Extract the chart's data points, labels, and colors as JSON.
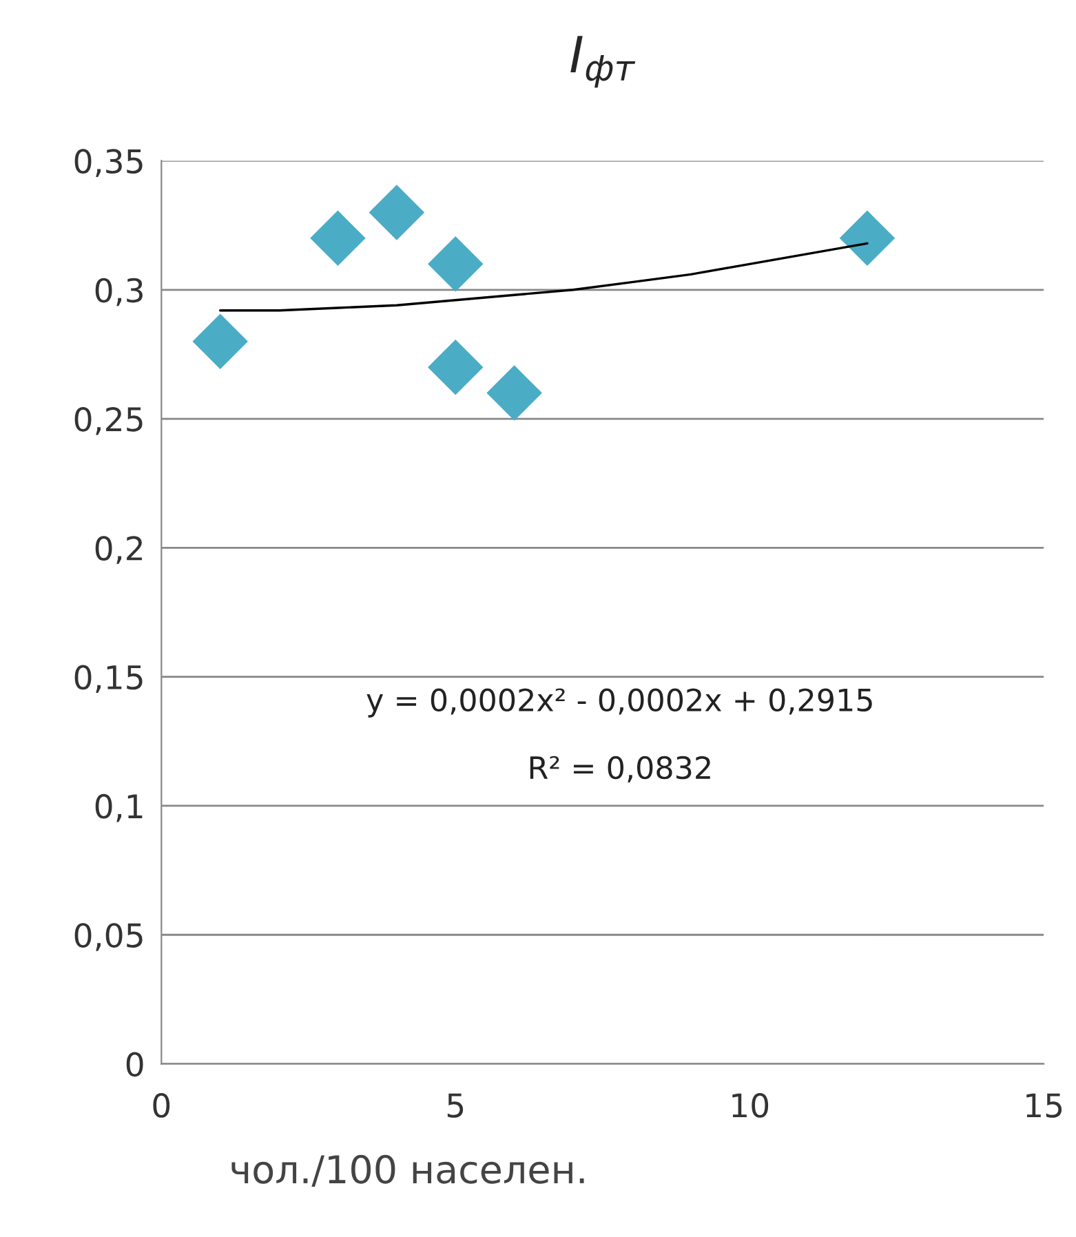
{
  "chart_data": {
    "type": "scatter",
    "title": "I$_{фт}$",
    "xlabel": "чол./100 населен.",
    "x": [
      1,
      3,
      4,
      5,
      5,
      6,
      12
    ],
    "series": [
      {
        "color": "#4bacc6",
        "marker": "diamond",
        "values": [
          0.28,
          0.32,
          0.33,
          0.31,
          0.27,
          0.26,
          0.32
        ]
      },
      {
        "type": "line",
        "color": "#000000",
        "line_style": "solid",
        "marker": "none",
        "x": [
          1,
          2,
          3,
          4,
          5,
          6,
          7,
          8,
          9,
          10,
          11,
          12
        ],
        "values": [
          0.292,
          0.292,
          0.293,
          0.294,
          0.296,
          0.298,
          0.3,
          0.303,
          0.306,
          0.31,
          0.314,
          0.318
        ]
      }
    ],
    "xlim": [
      0,
      15
    ],
    "xticks": [
      0,
      5,
      10,
      15
    ],
    "ylim": [
      0,
      0.35
    ],
    "yticks": [
      {
        "value": 0,
        "label": "0"
      },
      {
        "value": 0.05,
        "label": "0,05"
      },
      {
        "value": 0.1,
        "label": "0,1"
      },
      {
        "value": 0.15,
        "label": "0,15"
      },
      {
        "value": 0.2,
        "label": "0,2"
      },
      {
        "value": 0.25,
        "label": "0,25"
      },
      {
        "value": 0.3,
        "label": "0,3"
      },
      {
        "value": 0.35,
        "label": "0,35"
      }
    ],
    "grid": "y",
    "legend": false,
    "annotations": [
      "y = 0,0002x² - 0,0002x + 0,2915",
      "R² = 0,0832"
    ]
  }
}
